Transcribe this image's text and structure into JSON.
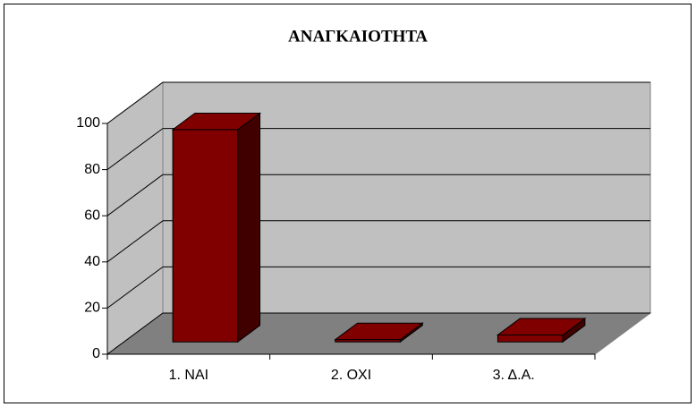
{
  "chart_data": {
    "type": "bar3d",
    "title": "ΑΝΑΓΚΑΙΟΤΗΤΑ",
    "categories": [
      "1. ΝΑΙ",
      "2. ΟΧΙ",
      "3. Δ.Α."
    ],
    "values": [
      92,
      1,
      3
    ],
    "color": "#800000",
    "ylim": [
      0,
      100
    ],
    "yticks": [
      0,
      20,
      40,
      60,
      80,
      100
    ],
    "grid": true
  }
}
